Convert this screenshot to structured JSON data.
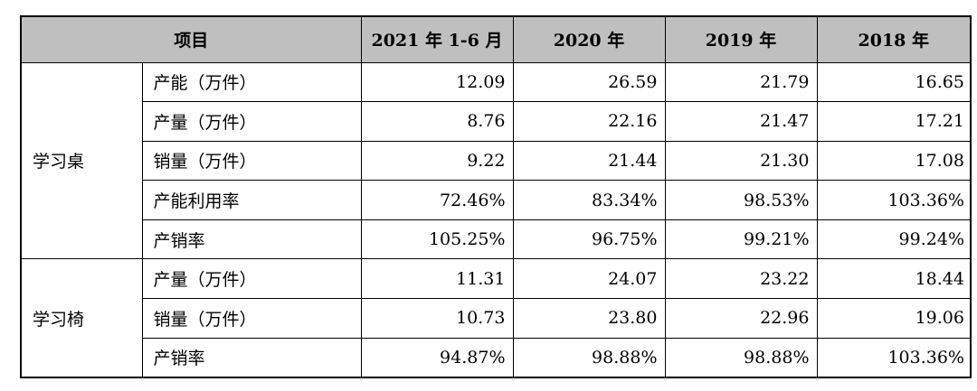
{
  "header": {
    "item": "项目",
    "cols": [
      "2021 年 1-6 月",
      "2020 年",
      "2019 年",
      "2018 年"
    ]
  },
  "groups": [
    {
      "name": "学习桌",
      "rows": [
        {
          "label": "产能（万件）",
          "values": [
            "12.09",
            "26.59",
            "21.79",
            "16.65"
          ]
        },
        {
          "label": "产量（万件）",
          "values": [
            "8.76",
            "22.16",
            "21.47",
            "17.21"
          ]
        },
        {
          "label": "销量（万件）",
          "values": [
            "9.22",
            "21.44",
            "21.30",
            "17.08"
          ]
        },
        {
          "label": "产能利用率",
          "values": [
            "72.46%",
            "83.34%",
            "98.53%",
            "103.36%"
          ]
        },
        {
          "label": "产销率",
          "values": [
            "105.25%",
            "96.75%",
            "99.21%",
            "99.24%"
          ]
        }
      ]
    },
    {
      "name": "学习椅",
      "rows": [
        {
          "label": "产量（万件）",
          "values": [
            "11.31",
            "24.07",
            "23.22",
            "18.44"
          ]
        },
        {
          "label": "销量（万件）",
          "values": [
            "10.73",
            "23.80",
            "22.96",
            "19.06"
          ]
        },
        {
          "label": "产销率",
          "values": [
            "94.87%",
            "98.88%",
            "98.88%",
            "103.36%"
          ]
        }
      ]
    }
  ]
}
